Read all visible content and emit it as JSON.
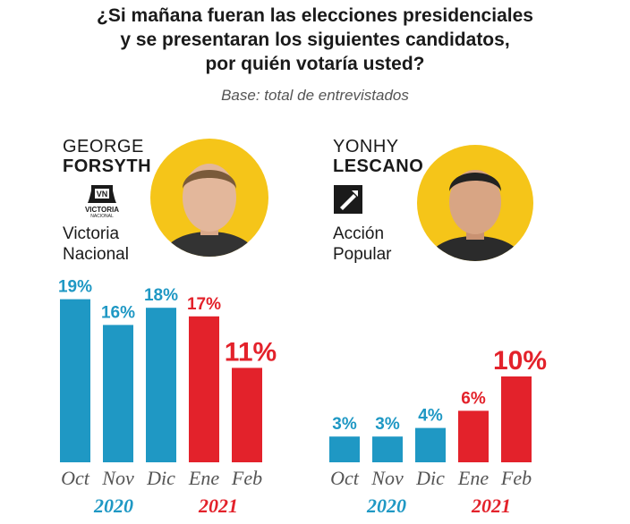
{
  "header": {
    "title_lines": [
      "¿Si mañana fueran las elecciones presidenciales",
      "y se presentaran los siguientes candidatos,",
      "por quién votaría usted?"
    ],
    "subtitle": "Base: total de entrevistados"
  },
  "candidates": [
    {
      "first_name": "GEORGE",
      "last_name": "FORSYTH",
      "party_line1": "Victoria",
      "party_line2": "Nacional",
      "logo_text_1": "VICTORIA",
      "logo_text_2": "NACIONAL",
      "logo_icon": "victoria-nacional-bell-logo-icon"
    },
    {
      "first_name": "YONHY",
      "last_name": "LESCANO",
      "party_line1": "Acción",
      "party_line2": "Popular",
      "logo_icon": "accion-popular-shovel-logo-icon"
    }
  ],
  "colors": {
    "blue": "#1f98c4",
    "red": "#e3222b",
    "photo_bg": "#f5c519"
  },
  "chart_data": [
    {
      "type": "bar",
      "title": "GEORGE FORSYTH",
      "categories": [
        "Oct",
        "Nov",
        "Dic",
        "Ene",
        "Feb"
      ],
      "values": [
        19,
        16,
        18,
        17,
        11
      ],
      "value_labels": [
        "19%",
        "16%",
        "18%",
        "17%",
        "11%"
      ],
      "years": [
        {
          "label": "2020",
          "categories": [
            "Oct",
            "Nov",
            "Dic"
          ],
          "color": "#1f98c4"
        },
        {
          "label": "2021",
          "categories": [
            "Ene",
            "Feb"
          ],
          "color": "#e3222b"
        }
      ],
      "bar_colors": [
        "#1f98c4",
        "#1f98c4",
        "#1f98c4",
        "#e3222b",
        "#e3222b"
      ],
      "ylim": [
        0,
        20
      ],
      "grid": false
    },
    {
      "type": "bar",
      "title": "YONHY LESCANO",
      "categories": [
        "Oct",
        "Nov",
        "Dic",
        "Ene",
        "Feb"
      ],
      "values": [
        3,
        3,
        4,
        6,
        10
      ],
      "value_labels": [
        "3%",
        "3%",
        "4%",
        "6%",
        "10%"
      ],
      "years": [
        {
          "label": "2020",
          "categories": [
            "Oct",
            "Nov",
            "Dic"
          ],
          "color": "#1f98c4"
        },
        {
          "label": "2021",
          "categories": [
            "Ene",
            "Feb"
          ],
          "color": "#e3222b"
        }
      ],
      "bar_colors": [
        "#1f98c4",
        "#1f98c4",
        "#1f98c4",
        "#e3222b",
        "#e3222b"
      ],
      "ylim": [
        0,
        20
      ],
      "grid": false
    }
  ]
}
